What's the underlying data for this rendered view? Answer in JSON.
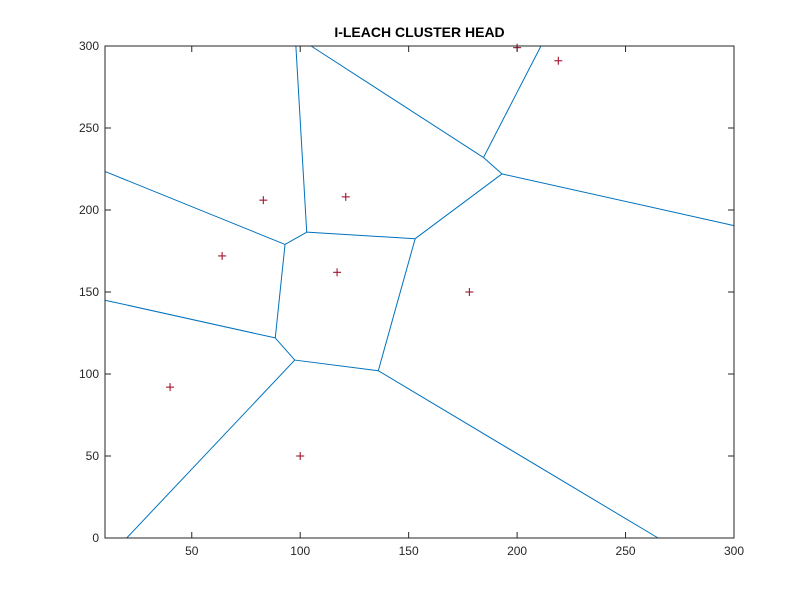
{
  "chart_data": {
    "type": "scatter",
    "title": "I-LEACH CLUSTER HEAD",
    "xlabel": "",
    "ylabel": "",
    "xlim": [
      10,
      300
    ],
    "ylim": [
      0,
      300
    ],
    "xticks": [
      50,
      100,
      150,
      200,
      250,
      300
    ],
    "yticks": [
      0,
      50,
      100,
      150,
      200,
      250,
      300
    ],
    "xtick_labels": [
      "50",
      "100",
      "150",
      "200",
      "250",
      "300"
    ],
    "ytick_labels": [
      "0",
      "50",
      "100",
      "150",
      "200",
      "250",
      "300"
    ],
    "grid": false,
    "legend": "none",
    "marker": "+",
    "colors": {
      "marker": "#a2142f",
      "voronoi_edge": "#0072bd",
      "axes": "#262626",
      "background": "#ffffff"
    },
    "points": [
      {
        "x": 40,
        "y": 92
      },
      {
        "x": 64,
        "y": 172
      },
      {
        "x": 83,
        "y": 206
      },
      {
        "x": 100,
        "y": 50
      },
      {
        "x": 117,
        "y": 162
      },
      {
        "x": 121,
        "y": 208
      },
      {
        "x": 178,
        "y": 150
      },
      {
        "x": 200,
        "y": 299
      },
      {
        "x": 219,
        "y": 291
      }
    ],
    "voronoi_edges": [
      [
        [
          10,
          223.5
        ],
        [
          93,
          179
        ]
      ],
      [
        [
          93,
          179
        ],
        [
          103,
          186.5
        ]
      ],
      [
        [
          93,
          179
        ],
        [
          88.5,
          122
        ]
      ],
      [
        [
          103,
          186.5
        ],
        [
          98,
          300
        ]
      ],
      [
        [
          103,
          186.5
        ],
        [
          153,
          182.5
        ]
      ],
      [
        [
          153,
          182.5
        ],
        [
          193,
          222
        ]
      ],
      [
        [
          153,
          182.5
        ],
        [
          136,
          102
        ]
      ],
      [
        [
          88.5,
          122
        ],
        [
          10,
          145
        ]
      ],
      [
        [
          88.5,
          122
        ],
        [
          97.5,
          108.5
        ]
      ],
      [
        [
          97.5,
          108.5
        ],
        [
          136,
          102
        ]
      ],
      [
        [
          97.5,
          108.5
        ],
        [
          20,
          0
        ]
      ],
      [
        [
          136,
          102
        ],
        [
          265,
          0
        ]
      ],
      [
        [
          193,
          222
        ],
        [
          184.5,
          232
        ]
      ],
      [
        [
          193,
          222
        ],
        [
          300,
          190.5
        ]
      ],
      [
        [
          184.5,
          232
        ],
        [
          105,
          300
        ]
      ],
      [
        [
          184.5,
          232
        ],
        [
          211,
          300
        ]
      ]
    ]
  }
}
